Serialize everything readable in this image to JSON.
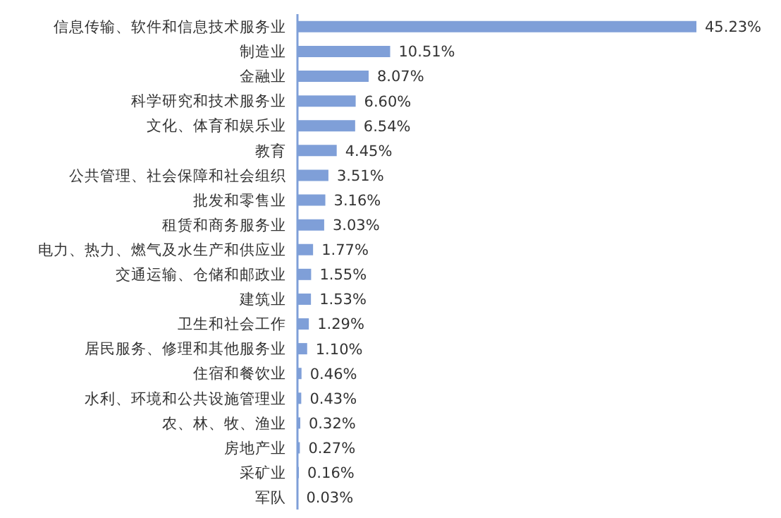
{
  "chart_data": {
    "type": "bar",
    "orientation": "horizontal",
    "categories": [
      "信息传输、软件和信息技术服务业",
      "制造业",
      "金融业",
      "科学研究和技术服务业",
      "文化、体育和娱乐业",
      "教育",
      "公共管理、社会保障和社会组织",
      "批发和零售业",
      "租赁和商务服务业",
      "电力、热力、燃气及水生产和供应业",
      "交通运输、仓储和邮政业",
      "建筑业",
      "卫生和社会工作",
      "居民服务、修理和其他服务业",
      "住宿和餐饮业",
      "水利、环境和公共设施管理业",
      "农、林、牧、渔业",
      "房地产业",
      "采矿业",
      "军队"
    ],
    "values": [
      45.23,
      10.51,
      8.07,
      6.6,
      6.54,
      4.45,
      3.51,
      3.16,
      3.03,
      1.77,
      1.55,
      1.53,
      1.29,
      1.1,
      0.46,
      0.43,
      0.32,
      0.27,
      0.16,
      0.03
    ],
    "value_labels": [
      "45.23%",
      "10.51%",
      "8.07%",
      "6.60%",
      "6.54%",
      "4.45%",
      "3.51%",
      "3.16%",
      "3.03%",
      "1.77%",
      "1.55%",
      "1.53%",
      "1.29%",
      "1.10%",
      "0.46%",
      "0.43%",
      "0.32%",
      "0.27%",
      "0.16%",
      "0.03%"
    ],
    "color": "#7f9fd8",
    "tick_labels": "y",
    "grid": false,
    "legend": false
  }
}
